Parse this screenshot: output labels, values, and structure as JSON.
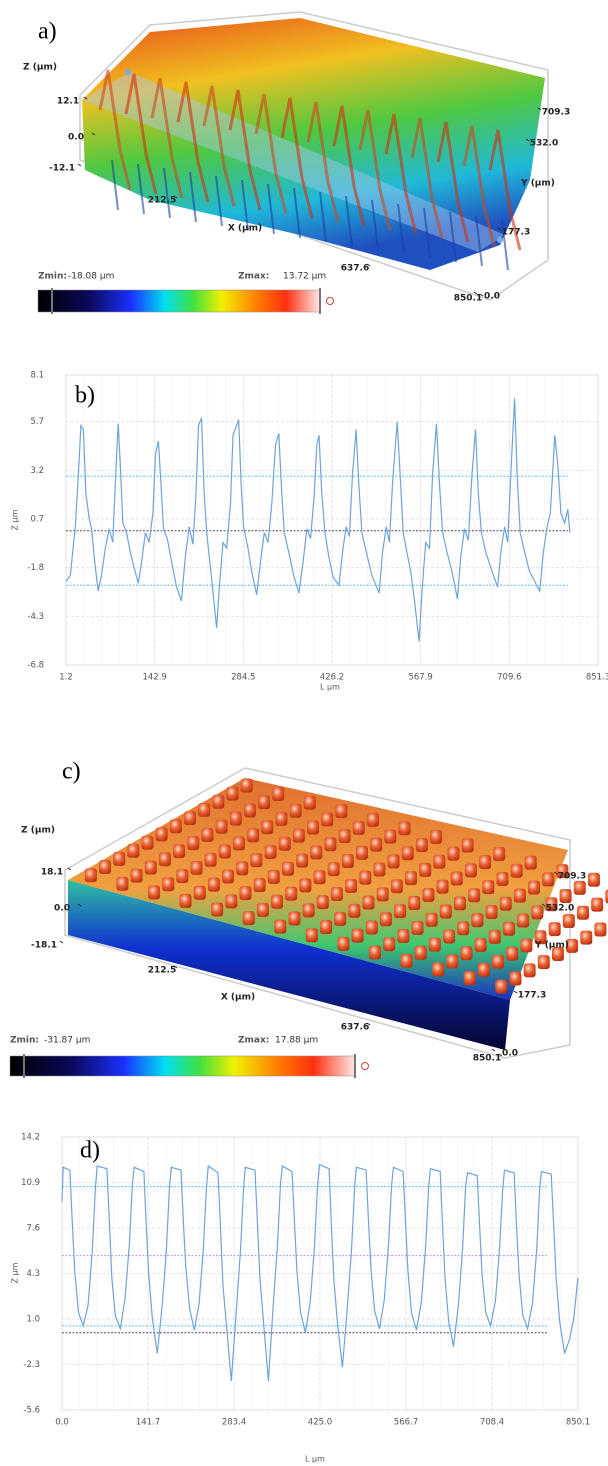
{
  "chart_data": [
    {
      "type": "surface3d",
      "panel": "a)",
      "zlabel": "Z (µm)",
      "xlabel": "X (µm)",
      "ylabel": "Y (µm)",
      "zticks": [
        12.1,
        {
          "value": 0,
          "label": "0.0"
        },
        -12.1
      ],
      "xticks": [
        212.5,
        637.6,
        850.1
      ],
      "yticks": [
        {
          "value": 0,
          "label": "0.0"
        },
        177.3,
        {
          "value": 532,
          "label": "532.0"
        },
        709.3
      ],
      "zmin_label": "Zmin:",
      "zmin": {
        "value": -18.08,
        "label": "-18.08 µm"
      },
      "zmax_label": "Zmax:",
      "zmax": {
        "value": 13.72,
        "label": "13.72 µm"
      }
    },
    {
      "type": "line",
      "panel": "b)",
      "xlabel": "L µm",
      "ylabel": "Z µm",
      "x": [
        1.2,
        8,
        16,
        21,
        25,
        29,
        33,
        38,
        42,
        47,
        52.5,
        58,
        64,
        70,
        76,
        80,
        84.6,
        88,
        92,
        98,
        104,
        110,
        116.7,
        122,
        128,
        134,
        140,
        144,
        148.8,
        153,
        157,
        163,
        170,
        178,
        185.6,
        192,
        198,
        204,
        209,
        213,
        217.7,
        222,
        226,
        231,
        236,
        241.8,
        247,
        252,
        258,
        264,
        268,
        277.1,
        281,
        285,
        292,
        298,
        305.9,
        312,
        318,
        324,
        330,
        336,
        341.2,
        346,
        350,
        357,
        365,
        373.3,
        380,
        386,
        392,
        398,
        402,
        405.4,
        410,
        415,
        421,
        428,
        437.4,
        443,
        449,
        454,
        459,
        464.7,
        469,
        474,
        481,
        490,
        501.6,
        507,
        513,
        518,
        523,
        530.5,
        535,
        540,
        546,
        552,
        558,
        565.5,
        570,
        576,
        582,
        587,
        593,
        598,
        603,
        610,
        618,
        626.7,
        632,
        638,
        644,
        650,
        655.6,
        660,
        665,
        672,
        680,
        690.9,
        696,
        702,
        707,
        712,
        718.1,
        722,
        727,
        734,
        742,
        750,
        758.2,
        764,
        770,
        775,
        782.3,
        787,
        792,
        798,
        803,
        806.4
      ],
      "series": [
        {
          "color": "#6fa3d8",
          "values": [
            -2.5,
            -2.2,
            0.3,
            3.0,
            5.5,
            5.3,
            2.0,
            0.8,
            0.2,
            -1.5,
            -3.0,
            -2.2,
            -0.8,
            0.2,
            -0.5,
            2.5,
            5.6,
            3.5,
            0.5,
            0.0,
            -1.0,
            -1.8,
            -2.6,
            -1.5,
            0.0,
            -0.5,
            1.0,
            4.0,
            4.7,
            2.5,
            0.2,
            -0.3,
            -1.5,
            -2.8,
            -3.5,
            -1.2,
            0.3,
            -0.6,
            2.0,
            5.5,
            5.9,
            2.0,
            0.0,
            -1.5,
            -3.0,
            -4.9,
            -2.5,
            -0.5,
            -0.8,
            1.5,
            5.0,
            5.8,
            2.5,
            0.3,
            -0.8,
            -2.0,
            -3.2,
            -1.5,
            0.0,
            -0.5,
            1.5,
            4.5,
            5.1,
            2.0,
            0.0,
            -1.0,
            -2.2,
            -3.1,
            -1.5,
            0.2,
            -0.3,
            2.0,
            4.5,
            5.0,
            2.0,
            0.0,
            -1.2,
            -2.3,
            -2.7,
            -1.0,
            0.3,
            -0.2,
            3.0,
            5.3,
            2.5,
            0.0,
            -1.0,
            -2.2,
            -3.1,
            -1.0,
            0.3,
            -0.5,
            2.5,
            5.7,
            3.0,
            0.0,
            -1.0,
            -2.0,
            -3.5,
            -5.6,
            -3.0,
            -0.5,
            -0.8,
            3.0,
            5.6,
            2.5,
            0.0,
            -1.0,
            -2.0,
            -3.4,
            -1.2,
            0.2,
            -0.4,
            3.0,
            5.3,
            2.0,
            0.0,
            -1.0,
            -1.8,
            -2.8,
            -1.0,
            0.3,
            -0.5,
            3.0,
            6.9,
            3.0,
            0.0,
            -1.0,
            -2.0,
            -2.5,
            -3.0,
            -1.0,
            0.3,
            1.0,
            5.0,
            3.5,
            1.0,
            0.5,
            1.2,
            0.0
          ]
        }
      ],
      "xlim": [
        1.2,
        851.3
      ],
      "xticks": [
        1.2,
        142.9,
        284.5,
        426.2,
        567.9,
        709.6,
        851.3
      ],
      "ylim": [
        -6.8,
        8.1
      ],
      "yticks": [
        8.1,
        5.7,
        3.2,
        0.7,
        -1.8,
        -4.3,
        -6.8
      ],
      "grid": true,
      "reference_lines": [
        {
          "value": 2.9,
          "color": "#5bc0eb"
        },
        {
          "value": 0.1,
          "color": "#4a4a6a"
        },
        {
          "value": -2.7,
          "color": "#5bc0eb"
        }
      ]
    },
    {
      "type": "surface3d",
      "panel": "c)",
      "zlabel": "Z (µm)",
      "xlabel": "X (µm)",
      "ylabel": "Y (µm)",
      "zticks": [
        18.1,
        {
          "value": 0,
          "label": "0.0"
        },
        -18.1
      ],
      "xticks": [
        212.5,
        637.6,
        850.1
      ],
      "yticks": [
        {
          "value": 0,
          "label": "0.0"
        },
        177.3,
        {
          "value": 532,
          "label": "532.0"
        },
        709.3
      ],
      "zmin_label": "Zmin:",
      "zmin": {
        "value": -31.87,
        "label": "-31.87 µm"
      },
      "zmax_label": "Zmax:",
      "zmax": {
        "value": 17.88,
        "label": "17.88 µm"
      }
    },
    {
      "type": "line",
      "panel": "d)",
      "xlabel": "L µm",
      "ylabel": "Z µm",
      "x": [
        0,
        2,
        13,
        17,
        21,
        27,
        35,
        43,
        50,
        55,
        58,
        74,
        78,
        82,
        88,
        96,
        104,
        111,
        116,
        119,
        135,
        139,
        143,
        149,
        157,
        165,
        172,
        177,
        180,
        196,
        200,
        204,
        210,
        218,
        226,
        233,
        238,
        241,
        257,
        261,
        265,
        271,
        279,
        287,
        294,
        299,
        302,
        318,
        322,
        326,
        332,
        340,
        348,
        355,
        360,
        363,
        379,
        383,
        387,
        393,
        401,
        409,
        416,
        421,
        424,
        440,
        444,
        448,
        454,
        462,
        470,
        477,
        482,
        485,
        501,
        505,
        509,
        515,
        523,
        531,
        538,
        543,
        546,
        562,
        566,
        570,
        576,
        584,
        592,
        599,
        604,
        607,
        623,
        627,
        631,
        637,
        645,
        653,
        660,
        665,
        668,
        684,
        688,
        692,
        698,
        706,
        714,
        721,
        726,
        729,
        745,
        749,
        753,
        759,
        767,
        775,
        782,
        787,
        790,
        806,
        810,
        814,
        820,
        828,
        836,
        843,
        850
      ],
      "series": [
        {
          "color": "#6fa3d8",
          "values": [
            9.5,
            12.0,
            11.8,
            8.0,
            4.5,
            1.5,
            0.5,
            2.0,
            6.0,
            10.5,
            12.1,
            11.9,
            8.2,
            4.0,
            1.2,
            0.3,
            2.5,
            6.5,
            10.8,
            12.0,
            11.7,
            7.5,
            4.2,
            1.0,
            -1.5,
            2.0,
            6.0,
            10.5,
            12.0,
            11.8,
            8.0,
            4.8,
            1.8,
            0.2,
            2.2,
            6.2,
            10.6,
            12.1,
            11.6,
            7.8,
            3.5,
            0.5,
            -3.5,
            1.5,
            6.0,
            10.4,
            12.0,
            11.8,
            8.0,
            4.0,
            0.8,
            -3.5,
            2.0,
            6.4,
            10.8,
            12.1,
            11.7,
            8.0,
            4.5,
            1.5,
            0.0,
            2.3,
            6.3,
            10.6,
            12.2,
            11.9,
            7.6,
            3.8,
            0.6,
            -2.5,
            1.8,
            6.0,
            10.5,
            12.0,
            11.8,
            8.1,
            4.6,
            1.6,
            0.3,
            2.4,
            6.5,
            10.7,
            12.0,
            11.7,
            7.9,
            4.4,
            1.4,
            0.2,
            2.2,
            6.2,
            10.5,
            11.9,
            11.7,
            7.7,
            4.0,
            0.8,
            -1.0,
            2.0,
            6.1,
            10.6,
            11.6,
            11.4,
            7.8,
            4.3,
            1.5,
            0.5,
            2.3,
            6.2,
            10.4,
            11.8,
            11.6,
            7.6,
            4.2,
            1.3,
            0.3,
            2.1,
            6.0,
            10.5,
            11.7,
            11.5,
            7.8,
            4.0,
            0.8,
            -1.5,
            -0.5,
            1.0,
            4.0
          ]
        }
      ],
      "xlim": [
        0,
        850.1
      ],
      "xticks": [
        {
          "value": 0,
          "label": "0.0"
        },
        141.7,
        283.4,
        {
          "value": 425,
          "label": "425.0"
        },
        566.7,
        708.4,
        850.1
      ],
      "ylim": [
        -5.6,
        14.2
      ],
      "yticks": [
        14.2,
        10.9,
        7.6,
        4.3,
        {
          "value": 1,
          "label": "1.0"
        },
        -2.3,
        -5.6
      ],
      "grid": true,
      "reference_lines": [
        {
          "value": 10.6,
          "color": "#5bc0eb"
        },
        {
          "value": 5.6,
          "color": "#b59ad8"
        },
        {
          "value": 0.5,
          "color": "#5bc0eb"
        },
        {
          "value": 0.0,
          "color": "#4a4a6a"
        }
      ]
    }
  ]
}
